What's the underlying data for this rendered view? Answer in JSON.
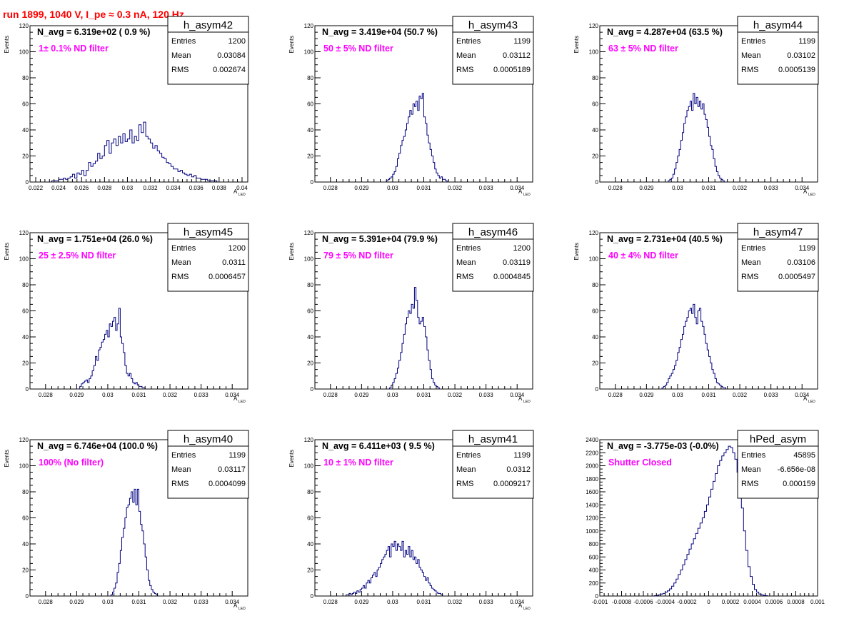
{
  "run_title": "run 1899,  1040 V, I_pe ≈ 0.3 nA, 120 Hz",
  "colors": {
    "title": "#ff0000",
    "annotation": "#ff00ff",
    "histogram": "#000080",
    "axis": "#000000"
  },
  "stats_labels": {
    "entries": "Entries",
    "mean": "Mean",
    "rms": "RMS"
  },
  "chart_data": [
    {
      "type": "histogram",
      "name": "h_asym42",
      "navg": "N_avg = 6.319e+02 ( 0.9 %)",
      "annotation": "1± 0.1% ND filter",
      "entries": "1200",
      "mean": "0.03084",
      "rms": "0.002674",
      "ylabel": "Events",
      "xlabel_main": "A",
      "xlabel_sub": "LED",
      "xlim": [
        0.0215,
        0.0405
      ],
      "ylim": [
        0,
        120
      ],
      "xticks": [
        0.022,
        0.024,
        0.026,
        0.028,
        0.03,
        0.032,
        0.034,
        0.036,
        0.038,
        0.04
      ],
      "xtick_labels": [
        "0.022",
        "0.024",
        "0.026",
        "0.028",
        "0.03",
        "0.032",
        "0.034",
        "0.036",
        "0.038",
        "0.04"
      ],
      "yticks": [
        0,
        20,
        40,
        60,
        80,
        100,
        120
      ],
      "ytick_labels": [
        "0",
        "20",
        "40",
        "60",
        "80",
        "100",
        "120"
      ],
      "bin_start": 0.0234,
      "bin_width": 0.0002,
      "values": [
        1,
        1,
        1,
        2,
        2,
        3,
        2,
        3,
        4,
        6,
        3,
        7,
        6,
        9,
        5,
        9,
        15,
        12,
        14,
        16,
        22,
        18,
        20,
        28,
        32,
        22,
        30,
        33,
        28,
        35,
        30,
        37,
        31,
        33,
        40,
        30,
        35,
        32,
        44,
        38,
        46,
        35,
        33,
        30,
        26,
        28,
        24,
        22,
        19,
        18,
        15,
        14,
        12,
        10,
        10,
        8,
        9,
        7,
        6,
        5,
        6,
        4,
        5,
        3,
        3,
        2,
        2,
        2,
        1,
        1,
        1,
        1
      ]
    },
    {
      "type": "histogram",
      "name": "h_asym43",
      "navg": "N_avg = 3.419e+04 (50.7 %)",
      "annotation": "50 ± 5% ND filter",
      "entries": "1199",
      "mean": "0.03112",
      "rms": "0.0005189",
      "ylabel": "Events",
      "xlabel_main": "A",
      "xlabel_sub": "LED",
      "xlim": [
        0.0275,
        0.0345
      ],
      "ylim": [
        0,
        120
      ],
      "xticks": [
        0.028,
        0.029,
        0.03,
        0.031,
        0.032,
        0.033,
        0.034
      ],
      "xtick_labels": [
        "0.028",
        "0.029",
        "0.03",
        "0.031",
        "0.032",
        "0.033",
        "0.034"
      ],
      "yticks": [
        0,
        20,
        40,
        60,
        80,
        100,
        120
      ],
      "ytick_labels": [
        "0",
        "20",
        "40",
        "60",
        "80",
        "100",
        "120"
      ],
      "bin_start": 0.0298,
      "bin_width": 5e-05,
      "values": [
        1,
        2,
        3,
        4,
        6,
        8,
        12,
        18,
        22,
        28,
        32,
        35,
        40,
        45,
        50,
        55,
        52,
        60,
        58,
        62,
        55,
        66,
        64,
        68,
        50,
        45,
        36,
        30,
        25,
        20,
        15,
        10,
        7,
        5,
        3,
        4,
        2,
        2,
        1
      ]
    },
    {
      "type": "histogram",
      "name": "h_asym44",
      "navg": "N_avg = 4.287e+04 (63.5 %)",
      "annotation": "63 ± 5% ND filter",
      "entries": "1199",
      "mean": "0.03102",
      "rms": "0.0005139",
      "ylabel": "Events",
      "xlabel_main": "A",
      "xlabel_sub": "LED",
      "xlim": [
        0.0275,
        0.0345
      ],
      "ylim": [
        0,
        120
      ],
      "xticks": [
        0.028,
        0.029,
        0.03,
        0.031,
        0.032,
        0.033,
        0.034
      ],
      "xtick_labels": [
        "0.028",
        "0.029",
        "0.03",
        "0.031",
        "0.032",
        "0.033",
        "0.034"
      ],
      "yticks": [
        0,
        20,
        40,
        60,
        80,
        100,
        120
      ],
      "ytick_labels": [
        "0",
        "20",
        "40",
        "60",
        "80",
        "100",
        "120"
      ],
      "bin_start": 0.0297,
      "bin_width": 5e-05,
      "values": [
        1,
        2,
        3,
        6,
        10,
        15,
        20,
        25,
        32,
        38,
        45,
        50,
        55,
        58,
        62,
        55,
        68,
        60,
        65,
        58,
        62,
        56,
        60,
        52,
        48,
        42,
        35,
        28,
        25,
        18,
        12,
        8,
        5,
        3,
        2,
        1
      ]
    },
    {
      "type": "histogram",
      "name": "h_asym45",
      "navg": "N_avg = 1.751e+04 (26.0 %)",
      "annotation": "25 ± 2.5% ND filter",
      "entries": "1200",
      "mean": "0.0311",
      "rms": "0.0006457",
      "ylabel": "Events",
      "xlabel_main": "A",
      "xlabel_sub": "LED",
      "xlim": [
        0.0275,
        0.0345
      ],
      "ylim": [
        0,
        120
      ],
      "xticks": [
        0.028,
        0.029,
        0.03,
        0.031,
        0.032,
        0.033,
        0.034
      ],
      "xtick_labels": [
        "0.028",
        "0.029",
        "0.03",
        "0.031",
        "0.032",
        "0.033",
        "0.034"
      ],
      "yticks": [
        0,
        20,
        40,
        60,
        80,
        100,
        120
      ],
      "ytick_labels": [
        "0",
        "20",
        "40",
        "60",
        "80",
        "100",
        "120"
      ],
      "bin_start": 0.0291,
      "bin_width": 5e-05,
      "values": [
        2,
        4,
        5,
        6,
        7,
        5,
        8,
        10,
        14,
        18,
        25,
        22,
        30,
        32,
        36,
        38,
        42,
        45,
        40,
        50,
        48,
        52,
        55,
        45,
        50,
        62,
        40,
        35,
        28,
        18,
        12,
        10,
        12,
        8,
        5,
        4,
        5,
        3,
        2,
        2,
        1,
        1
      ]
    },
    {
      "type": "histogram",
      "name": "h_asym46",
      "navg": "N_avg = 5.391e+04 (79.9 %)",
      "annotation": "79 ± 5% ND filter",
      "entries": "1200",
      "mean": "0.03119",
      "rms": "0.0004845",
      "ylabel": "Events",
      "xlabel_main": "A",
      "xlabel_sub": "LED",
      "xlim": [
        0.0275,
        0.0345
      ],
      "ylim": [
        0,
        120
      ],
      "xticks": [
        0.028,
        0.029,
        0.03,
        0.031,
        0.032,
        0.033,
        0.034
      ],
      "xtick_labels": [
        "0.028",
        "0.029",
        "0.03",
        "0.031",
        "0.032",
        "0.033",
        "0.034"
      ],
      "yticks": [
        0,
        20,
        40,
        60,
        80,
        100,
        120
      ],
      "ytick_labels": [
        "0",
        "20",
        "40",
        "60",
        "80",
        "100",
        "120"
      ],
      "bin_start": 0.0299,
      "bin_width": 5e-05,
      "values": [
        1,
        3,
        5,
        8,
        12,
        16,
        22,
        28,
        35,
        42,
        50,
        55,
        60,
        58,
        65,
        62,
        78,
        68,
        55,
        50,
        52,
        55,
        48,
        40,
        30,
        22,
        15,
        8,
        5,
        3,
        2,
        1
      ]
    },
    {
      "type": "histogram",
      "name": "h_asym47",
      "navg": "N_avg = 2.731e+04 (40.5 %)",
      "annotation": "40 ± 4% ND filter",
      "entries": "1199",
      "mean": "0.03106",
      "rms": "0.0005497",
      "ylabel": "Events",
      "xlabel_main": "A",
      "xlabel_sub": "LED",
      "xlim": [
        0.0275,
        0.0345
      ],
      "ylim": [
        0,
        120
      ],
      "xticks": [
        0.028,
        0.029,
        0.03,
        0.031,
        0.032,
        0.033,
        0.034
      ],
      "xtick_labels": [
        "0.028",
        "0.029",
        "0.03",
        "0.031",
        "0.032",
        "0.033",
        "0.034"
      ],
      "yticks": [
        0,
        20,
        40,
        60,
        80,
        100,
        120
      ],
      "ytick_labels": [
        "0",
        "20",
        "40",
        "60",
        "80",
        "100",
        "120"
      ],
      "bin_start": 0.0295,
      "bin_width": 5e-05,
      "values": [
        1,
        2,
        3,
        5,
        8,
        10,
        12,
        15,
        18,
        22,
        28,
        32,
        38,
        42,
        48,
        52,
        55,
        60,
        62,
        58,
        65,
        55,
        50,
        60,
        62,
        52,
        48,
        42,
        35,
        30,
        25,
        20,
        15,
        12,
        8,
        5,
        4,
        3,
        2,
        1,
        1
      ]
    },
    {
      "type": "histogram",
      "name": "h_asym40",
      "navg": "N_avg = 6.746e+04 (100.0 %)",
      "annotation": "100% (No filter)",
      "entries": "1199",
      "mean": "0.03117",
      "rms": "0.0004099",
      "ylabel": "Events",
      "xlabel_main": "A",
      "xlabel_sub": "LED",
      "xlim": [
        0.0275,
        0.0345
      ],
      "ylim": [
        0,
        120
      ],
      "xticks": [
        0.028,
        0.029,
        0.03,
        0.031,
        0.032,
        0.033,
        0.034
      ],
      "xtick_labels": [
        "0.028",
        "0.029",
        "0.03",
        "0.031",
        "0.032",
        "0.033",
        "0.034"
      ],
      "yticks": [
        0,
        20,
        40,
        60,
        80,
        100,
        120
      ],
      "ytick_labels": [
        "0",
        "20",
        "40",
        "60",
        "80",
        "100",
        "120"
      ],
      "bin_start": 0.0301,
      "bin_width": 5e-05,
      "values": [
        1,
        3,
        6,
        10,
        18,
        25,
        35,
        45,
        52,
        60,
        68,
        70,
        75,
        80,
        72,
        82,
        70,
        82,
        65,
        55,
        50,
        40,
        30,
        20,
        12,
        8,
        5,
        3,
        2,
        1
      ]
    },
    {
      "type": "histogram",
      "name": "h_asym41",
      "navg": "N_avg = 6.411e+03 ( 9.5 %)",
      "annotation": "10 ± 1% ND filter",
      "entries": "1199",
      "mean": "0.0312",
      "rms": "0.0009217",
      "ylabel": "Events",
      "xlabel_main": "A",
      "xlabel_sub": "LED",
      "xlim": [
        0.0275,
        0.0345
      ],
      "ylim": [
        0,
        120
      ],
      "xticks": [
        0.028,
        0.029,
        0.03,
        0.031,
        0.032,
        0.033,
        0.034
      ],
      "xtick_labels": [
        "0.028",
        "0.029",
        "0.03",
        "0.031",
        "0.032",
        "0.033",
        "0.034"
      ],
      "yticks": [
        0,
        20,
        40,
        60,
        80,
        100,
        120
      ],
      "ytick_labels": [
        "0",
        "20",
        "40",
        "60",
        "80",
        "100",
        "120"
      ],
      "bin_start": 0.0285,
      "bin_width": 5e-05,
      "values": [
        1,
        1,
        2,
        1,
        2,
        3,
        2,
        4,
        3,
        5,
        6,
        8,
        6,
        10,
        12,
        10,
        14,
        16,
        18,
        15,
        20,
        22,
        25,
        28,
        30,
        32,
        35,
        38,
        30,
        40,
        38,
        42,
        35,
        40,
        38,
        35,
        42,
        30,
        35,
        32,
        38,
        30,
        35,
        28,
        30,
        25,
        28,
        22,
        20,
        18,
        15,
        12,
        14,
        10,
        8,
        6,
        5,
        4,
        3,
        2,
        2,
        1
      ]
    },
    {
      "type": "histogram",
      "name": "hPed_asym",
      "navg": "N_avg = -3.775e-03 (-0.0%)",
      "annotation": "Shutter Closed",
      "entries": "45895",
      "mean": "-6.656e-08",
      "rms": "0.000159",
      "ylabel": "",
      "xlabel_main": "",
      "xlabel_sub": "",
      "xlim": [
        -0.001,
        0.001
      ],
      "ylim": [
        0,
        2400
      ],
      "xticks": [
        -0.001,
        -0.0008,
        -0.0006,
        -0.0004,
        -0.0002,
        0,
        0.0002,
        0.0004,
        0.0006,
        0.0008,
        0.001
      ],
      "xtick_labels": [
        "-0.001",
        "-0.0008",
        "-0.0006",
        "-0.0004",
        "-0.0002",
        "0",
        "0.0002",
        "0.0004",
        "0.0006",
        "0.0008",
        "0.001"
      ],
      "yticks": [
        0,
        200,
        400,
        600,
        800,
        1000,
        1200,
        1400,
        1600,
        1800,
        2000,
        2200,
        2400
      ],
      "ytick_labels": [
        "0",
        "200",
        "400",
        "600",
        "800",
        "1000",
        "1200",
        "1400",
        "1600",
        "1800",
        "2000",
        "2200",
        "2400"
      ],
      "bin_start": -0.0005,
      "bin_width": 2e-05,
      "values": [
        5,
        10,
        20,
        30,
        40,
        60,
        80,
        110,
        150,
        200,
        260,
        330,
        400,
        480,
        560,
        640,
        720,
        800,
        880,
        960,
        1040,
        1120,
        1200,
        1300,
        1400,
        1520,
        1640,
        1760,
        1880,
        2000,
        2080,
        2150,
        2200,
        2250,
        2300,
        2280,
        2200,
        2100,
        1900,
        1650,
        1350,
        1000,
        700,
        450,
        300,
        180,
        100,
        60,
        30,
        20,
        10,
        5
      ]
    }
  ]
}
